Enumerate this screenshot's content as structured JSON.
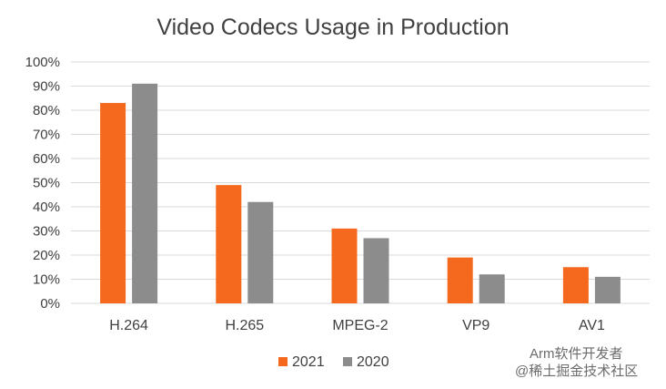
{
  "chart_data": {
    "type": "bar",
    "title": "Video Codecs Usage in Production",
    "xlabel": "",
    "ylabel": "",
    "categories": [
      "H.264",
      "H.265",
      "MPEG-2",
      "VP9",
      "AV1"
    ],
    "series": [
      {
        "name": "2021",
        "color": "#f4691e",
        "values": [
          83,
          49,
          31,
          19,
          15
        ]
      },
      {
        "name": "2020",
        "color": "#8c8c8c",
        "values": [
          91,
          42,
          27,
          12,
          11
        ]
      }
    ],
    "ylim": [
      0,
      100
    ],
    "yticks": [
      0,
      10,
      20,
      30,
      40,
      50,
      60,
      70,
      80,
      90,
      100
    ],
    "ytick_labels": [
      "0%",
      "10%",
      "20%",
      "30%",
      "40%",
      "50%",
      "60%",
      "70%",
      "80%",
      "90%",
      "100%"
    ],
    "grid": true,
    "legend_position": "bottom",
    "gridline_color": "#d9d9d9"
  },
  "watermark": {
    "line1": "Arm软件开发者",
    "line2": "@稀土掘金技术社区"
  }
}
